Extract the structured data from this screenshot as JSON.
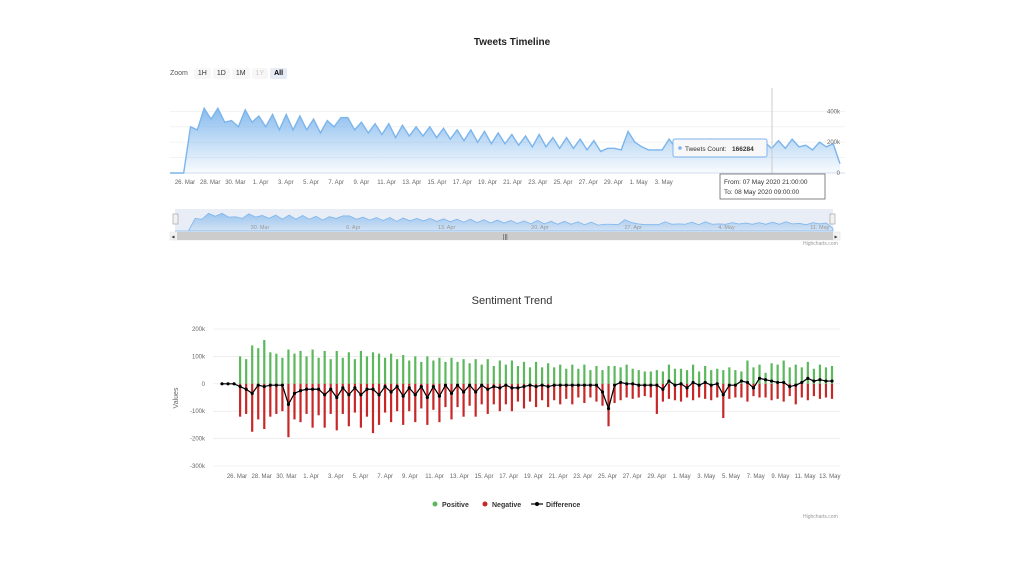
{
  "timeline": {
    "title": "Tweets Timeline",
    "zoom_label": "Zoom",
    "zoom_buttons": [
      "1H",
      "1D",
      "1M",
      "1Y",
      "All"
    ],
    "zoom_active": "All",
    "zoom_disabled": [
      "1Y"
    ],
    "credits": "Highcharts.com",
    "series_color": "#7cb5ec",
    "tooltip": {
      "series_name": "Tweets Count:",
      "value": "166284",
      "from": "From: 07 May 2020 21:00:00",
      "to": "To: 08 May 2020 09:00:00"
    }
  },
  "sentiment": {
    "title": "Sentiment Trend",
    "credits": "Highcharts.com",
    "legend": {
      "positive": "Positive",
      "negative": "Negative",
      "difference": "Difference"
    },
    "colors": {
      "positive": "#5cb85c",
      "negative": "#c62828",
      "difference": "#000000"
    }
  },
  "chart_data": [
    {
      "type": "area",
      "title": "Tweets Timeline",
      "y_ticks": [
        "400k",
        "200k",
        "0"
      ],
      "ylim": [
        0,
        500000
      ],
      "x_ticks": [
        "26. Mar",
        "28. Mar",
        "30. Mar",
        "1. Apr",
        "3. Apr",
        "5. Apr",
        "7. Apr",
        "9. Apr",
        "11. Apr",
        "13. Apr",
        "15. Apr",
        "17. Apr",
        "19. Apr",
        "21. Apr",
        "23. Apr",
        "25. Apr",
        "27. Apr",
        "29. Apr",
        "1. May",
        "3. May"
      ],
      "navigator_ticks": [
        "30. Mar",
        "6. Apr",
        "13. Apr",
        "20. Apr",
        "27. Apr",
        "4. May",
        "11. May"
      ],
      "series": [
        {
          "name": "Tweets Count",
          "values": [
            0,
            0,
            0,
            300000,
            280000,
            420000,
            350000,
            420000,
            330000,
            340000,
            300000,
            410000,
            330000,
            370000,
            300000,
            380000,
            280000,
            380000,
            280000,
            370000,
            280000,
            350000,
            260000,
            340000,
            300000,
            360000,
            360000,
            280000,
            330000,
            260000,
            320000,
            250000,
            320000,
            230000,
            310000,
            240000,
            300000,
            240000,
            300000,
            230000,
            290000,
            220000,
            280000,
            210000,
            280000,
            200000,
            270000,
            190000,
            260000,
            190000,
            250000,
            180000,
            240000,
            170000,
            250000,
            170000,
            230000,
            160000,
            230000,
            160000,
            220000,
            150000,
            210000,
            140000,
            160000,
            160000,
            150000,
            270000,
            200000,
            170000,
            150000,
            150000,
            150000,
            220000,
            160000,
            170000,
            160000,
            210000,
            150000,
            220000,
            160000,
            170000,
            160000,
            200000,
            166284,
            190000,
            160000,
            200000,
            160000,
            210000,
            160000,
            220000,
            170000,
            180000,
            150000,
            200000,
            170000,
            190000,
            60000
          ]
        }
      ]
    },
    {
      "type": "bar",
      "title": "Sentiment Trend",
      "ylabel": "Values",
      "y_ticks": [
        "200k",
        "100k",
        "0",
        "-100k",
        "-200k",
        "-300k"
      ],
      "ylim": [
        -300000,
        200000
      ],
      "x_ticks": [
        "26. Mar",
        "28. Mar",
        "30. Mar",
        "1. Apr",
        "3. Apr",
        "5. Apr",
        "7. Apr",
        "9. Apr",
        "11. Apr",
        "13. Apr",
        "15. Apr",
        "17. Apr",
        "19. Apr",
        "21. Apr",
        "23. Apr",
        "25. Apr",
        "27. Apr",
        "29. Apr",
        "1. May",
        "3. May",
        "5. May",
        "7. May",
        "9. May",
        "11. May",
        "13. May"
      ],
      "series": [
        {
          "name": "Positive",
          "values": [
            0,
            0,
            0,
            100000,
            90000,
            140000,
            130000,
            160000,
            115000,
            110000,
            95000,
            125000,
            110000,
            120000,
            100000,
            125000,
            95000,
            120000,
            90000,
            120000,
            95000,
            115000,
            90000,
            120000,
            100000,
            115000,
            110000,
            95000,
            110000,
            90000,
            105000,
            85000,
            100000,
            80000,
            100000,
            85000,
            95000,
            80000,
            95000,
            80000,
            90000,
            75000,
            90000,
            70000,
            90000,
            65000,
            85000,
            70000,
            85000,
            65000,
            80000,
            60000,
            80000,
            60000,
            75000,
            60000,
            70000,
            55000,
            70000,
            55000,
            70000,
            50000,
            65000,
            50000,
            65000,
            65000,
            60000,
            70000,
            55000,
            50000,
            45000,
            45000,
            50000,
            45000,
            70000,
            55000,
            55000,
            50000,
            70000,
            45000,
            65000,
            50000,
            55000,
            50000,
            60000,
            50000,
            45000,
            85000,
            60000,
            70000,
            40000,
            75000,
            70000,
            85000,
            60000,
            70000,
            60000,
            80000,
            55000,
            70000,
            60000,
            65000
          ]
        },
        {
          "name": "Negative",
          "values": [
            0,
            0,
            0,
            -120000,
            -110000,
            -175000,
            -130000,
            -165000,
            -120000,
            -110000,
            -100000,
            -195000,
            -130000,
            -140000,
            -110000,
            -160000,
            -115000,
            -160000,
            -110000,
            -170000,
            -110000,
            -155000,
            -105000,
            -160000,
            -120000,
            -180000,
            -150000,
            -105000,
            -140000,
            -100000,
            -150000,
            -100000,
            -140000,
            -90000,
            -150000,
            -95000,
            -140000,
            -85000,
            -130000,
            -85000,
            -120000,
            -80000,
            -120000,
            -75000,
            -110000,
            -75000,
            -100000,
            -75000,
            -100000,
            -65000,
            -90000,
            -65000,
            -85000,
            -60000,
            -85000,
            -60000,
            -75000,
            -55000,
            -75000,
            -50000,
            -70000,
            -50000,
            -65000,
            -80000,
            -155000,
            -70000,
            -60000,
            -50000,
            -55000,
            -50000,
            -45000,
            -50000,
            -110000,
            -65000,
            -55000,
            -60000,
            -65000,
            -50000,
            -60000,
            -50000,
            -55000,
            -60000,
            -50000,
            -125000,
            -55000,
            -50000,
            -50000,
            -65000,
            -45000,
            -50000,
            -50000,
            -60000,
            -55000,
            -65000,
            -45000,
            -75000,
            -50000,
            -60000,
            -45000,
            -55000,
            -50000,
            -55000
          ]
        },
        {
          "name": "Difference",
          "type": "line",
          "values": [
            0,
            0,
            0,
            -10000,
            -20000,
            -35000,
            -5000,
            -10000,
            -5000,
            -5000,
            -5000,
            -75000,
            -35000,
            -25000,
            -20000,
            -20000,
            -20000,
            -40000,
            -20000,
            -50000,
            -15000,
            -40000,
            -15000,
            -40000,
            -20000,
            -20000,
            -40000,
            -10000,
            -30000,
            -10000,
            -45000,
            -15000,
            -40000,
            -10000,
            -50000,
            -10000,
            -45000,
            -5000,
            -35000,
            -5000,
            -30000,
            -5000,
            -30000,
            -5000,
            -20000,
            -10000,
            -15000,
            -5000,
            -15000,
            -15000,
            -10000,
            -5000,
            -10000,
            -5000,
            -10000,
            -5000,
            -5000,
            -5000,
            -5000,
            -5000,
            -5000,
            -5000,
            -5000,
            -30000,
            -90000,
            -5000,
            5000,
            0,
            0,
            -5000,
            -5000,
            -5000,
            -5000,
            -20000,
            10000,
            -5000,
            0,
            -15000,
            5000,
            -5000,
            5000,
            -5000,
            0,
            -40000,
            -5000,
            -5000,
            10000,
            5000,
            -15000,
            20000,
            15000,
            10000,
            5000,
            5000,
            -10000,
            -5000,
            5000,
            20000,
            10000,
            15000,
            10000,
            10000
          ]
        }
      ]
    }
  ]
}
